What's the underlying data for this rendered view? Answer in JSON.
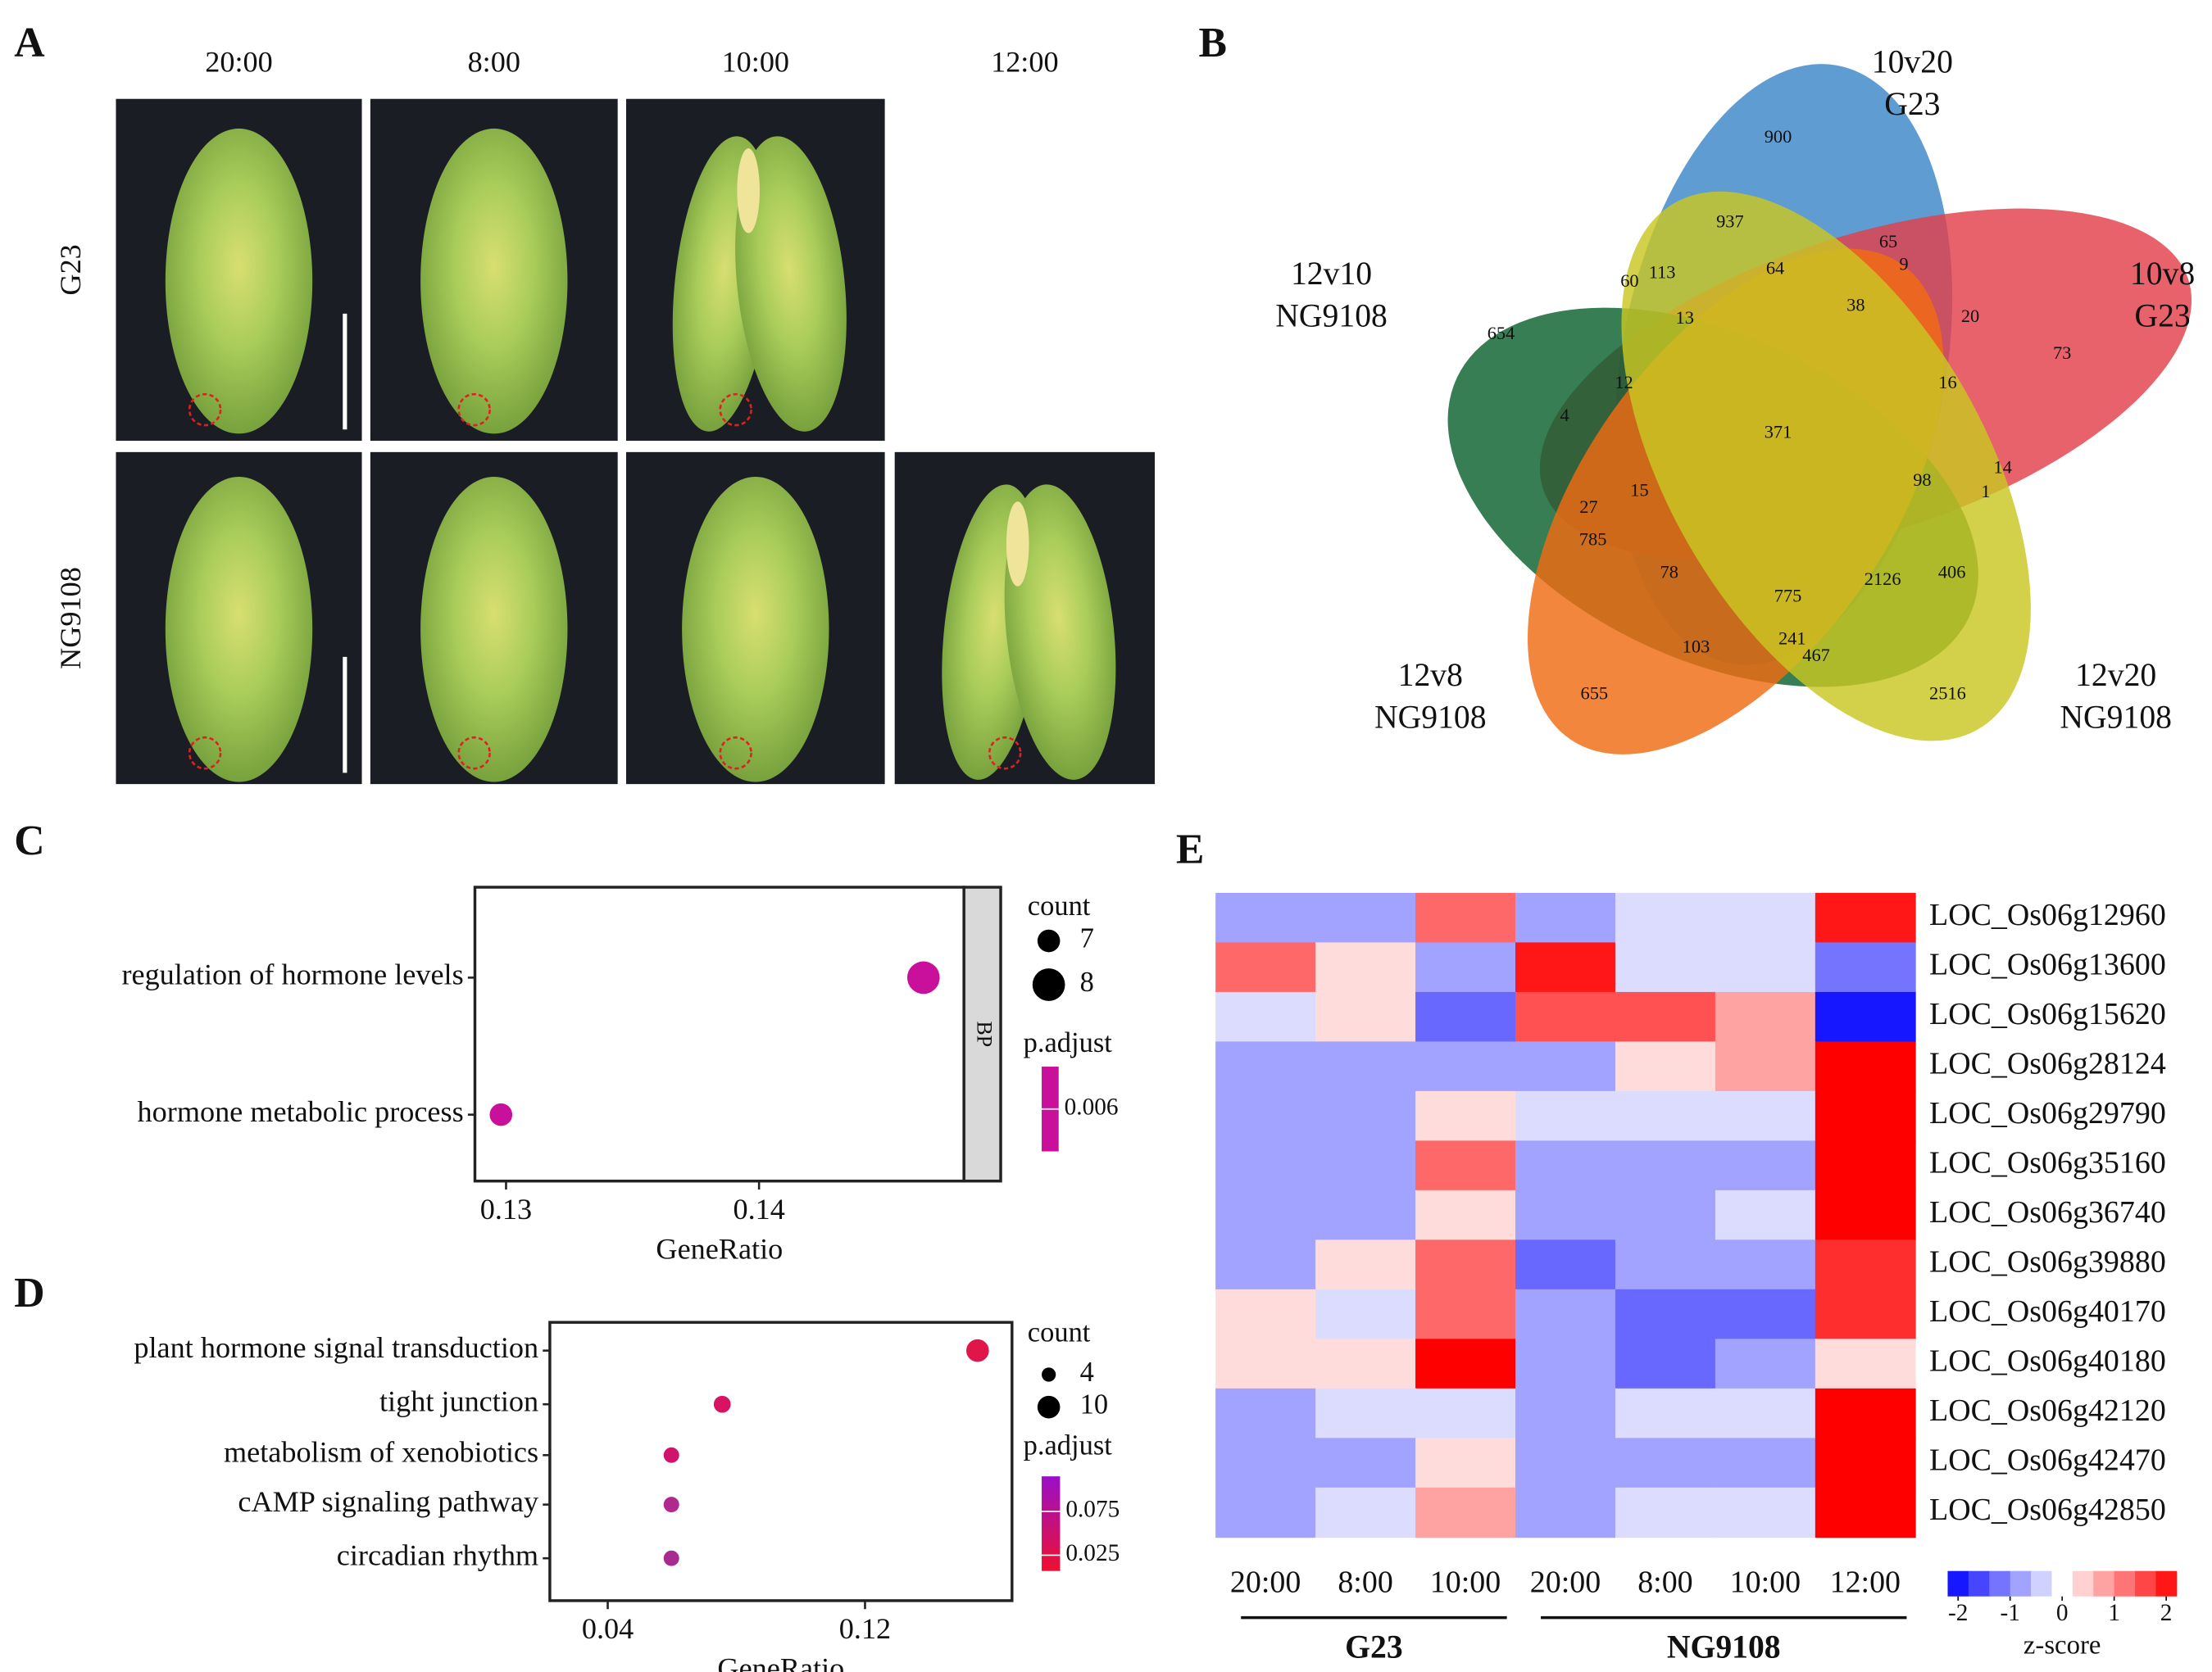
{
  "panel_labels": [
    "A",
    "B",
    "C",
    "D",
    "E"
  ],
  "photos": {
    "columns": [
      "20:00",
      "8:00",
      "10:00",
      "12:00"
    ],
    "rows": [
      "G23",
      "NG9108"
    ]
  },
  "chart_data": [
    {
      "type": "venn",
      "sets": [
        {
          "name": "10v20 G23",
          "color": "#3a86c8"
        },
        {
          "name": "10v8 G23",
          "color": "#e2404a"
        },
        {
          "name": "12v10 NG9108",
          "color": "#0b6130"
        },
        {
          "name": "12v8 NG9108",
          "color": "#f06b12"
        },
        {
          "name": "12v20 NG9108",
          "color": "#c9c722"
        }
      ],
      "values": [
        900,
        937,
        65,
        9,
        64,
        113,
        60,
        13,
        38,
        20,
        73,
        654,
        12,
        16,
        4,
        371,
        14,
        98,
        1,
        15,
        27,
        785,
        406,
        78,
        2126,
        775,
        241,
        467,
        103,
        655,
        2516
      ]
    },
    {
      "type": "dot",
      "x_label": "GeneRatio",
      "facet": "BP",
      "categories": [
        "regulation of hormone levels",
        "hormone metabolic process"
      ],
      "x": [
        0.1465,
        0.1298
      ],
      "counts": [
        8,
        7
      ],
      "color": "#c8109a",
      "xlim": [
        0.12877,
        0.1481
      ],
      "xticks": [
        0.13,
        0.14
      ],
      "size_legend": {
        "title": "count",
        "values": [
          7,
          8
        ]
      },
      "color_legend": {
        "title": "p.adjust",
        "ticks": [
          0.006
        ],
        "clim": [
          0.0045,
          0.0075
        ],
        "colors": [
          "#c8109a",
          "#c8109a"
        ]
      }
    },
    {
      "type": "dot",
      "x_label": "GeneRatio",
      "categories": [
        "plant hormone signal transduction",
        "tight junction",
        "metabolism of xenobiotics",
        "cAMP signaling pathway",
        "circadian rhythm"
      ],
      "x": [
        0.155,
        0.0756,
        0.0598,
        0.0598,
        0.0598
      ],
      "counts": [
        10,
        6,
        5,
        5,
        5
      ],
      "colors": [
        "#e0154a",
        "#d81462",
        "#d0146c",
        "#b02a8e",
        "#a82c90"
      ],
      "xlim": [
        0.022,
        0.1657
      ],
      "xticks": [
        0.04,
        0.12
      ],
      "size_legend": {
        "title": "count",
        "values": [
          4,
          10
        ]
      },
      "color_legend": {
        "title": "p.adjust",
        "ticks": [
          0.075,
          0.025
        ],
        "clim": [
          0.007,
          0.115
        ],
        "colors": [
          "#ee1030",
          "#9a10c8"
        ]
      }
    },
    {
      "type": "heatmap",
      "rows": [
        "LOC_Os06g12960",
        "LOC_Os06g13600",
        "LOC_Os06g15620",
        "LOC_Os06g28124",
        "LOC_Os06g29790",
        "LOC_Os06g35160",
        "LOC_Os06g36740",
        "LOC_Os06g39880",
        "LOC_Os06g40170",
        "LOC_Os06g40180",
        "LOC_Os06g42120",
        "LOC_Os06g42470",
        "LOC_Os06g42850"
      ],
      "columns": [
        "20:00",
        "8:00",
        "10:00",
        "20:00",
        "8:00",
        "10:00",
        "12:00"
      ],
      "groups": [
        "G23",
        "NG9108"
      ],
      "values": [
        [
          -0.8,
          -0.8,
          1.3,
          -0.8,
          -0.3,
          -0.3,
          2
        ],
        [
          1.3,
          0.3,
          -0.8,
          2,
          -0.3,
          -0.3,
          -1.2
        ],
        [
          -0.3,
          0.3,
          -1.3,
          1.5,
          1.5,
          0.8,
          -2
        ],
        [
          -0.8,
          -0.8,
          -0.8,
          -0.8,
          0.3,
          0.8,
          2.2
        ],
        [
          -0.8,
          -0.8,
          0.3,
          -0.3,
          -0.3,
          -0.3,
          2.2
        ],
        [
          -0.8,
          -0.8,
          1.3,
          -0.8,
          -0.8,
          -0.8,
          2.2
        ],
        [
          -0.8,
          -0.8,
          0.3,
          -0.8,
          -0.8,
          -0.3,
          2.2
        ],
        [
          -0.8,
          0.3,
          1.3,
          -1.3,
          -0.8,
          -0.8,
          1.8
        ],
        [
          0.3,
          -0.3,
          1.3,
          -0.8,
          -1.3,
          -1.3,
          1.8
        ],
        [
          0.3,
          0.3,
          2.2,
          -0.8,
          -1.3,
          -0.8,
          0.3
        ],
        [
          -0.8,
          -0.3,
          -0.3,
          -0.8,
          -0.3,
          -0.3,
          2.2
        ],
        [
          -0.8,
          -0.8,
          0.3,
          -0.8,
          -0.8,
          -0.8,
          2.2
        ],
        [
          -0.8,
          -0.3,
          0.8,
          -0.8,
          -0.3,
          -0.3,
          2.2
        ]
      ],
      "zlim": [
        -2.2,
        2.2
      ],
      "zticks": [
        -2,
        -1,
        0,
        1,
        2
      ],
      "colorbar_label": "z-score"
    }
  ]
}
